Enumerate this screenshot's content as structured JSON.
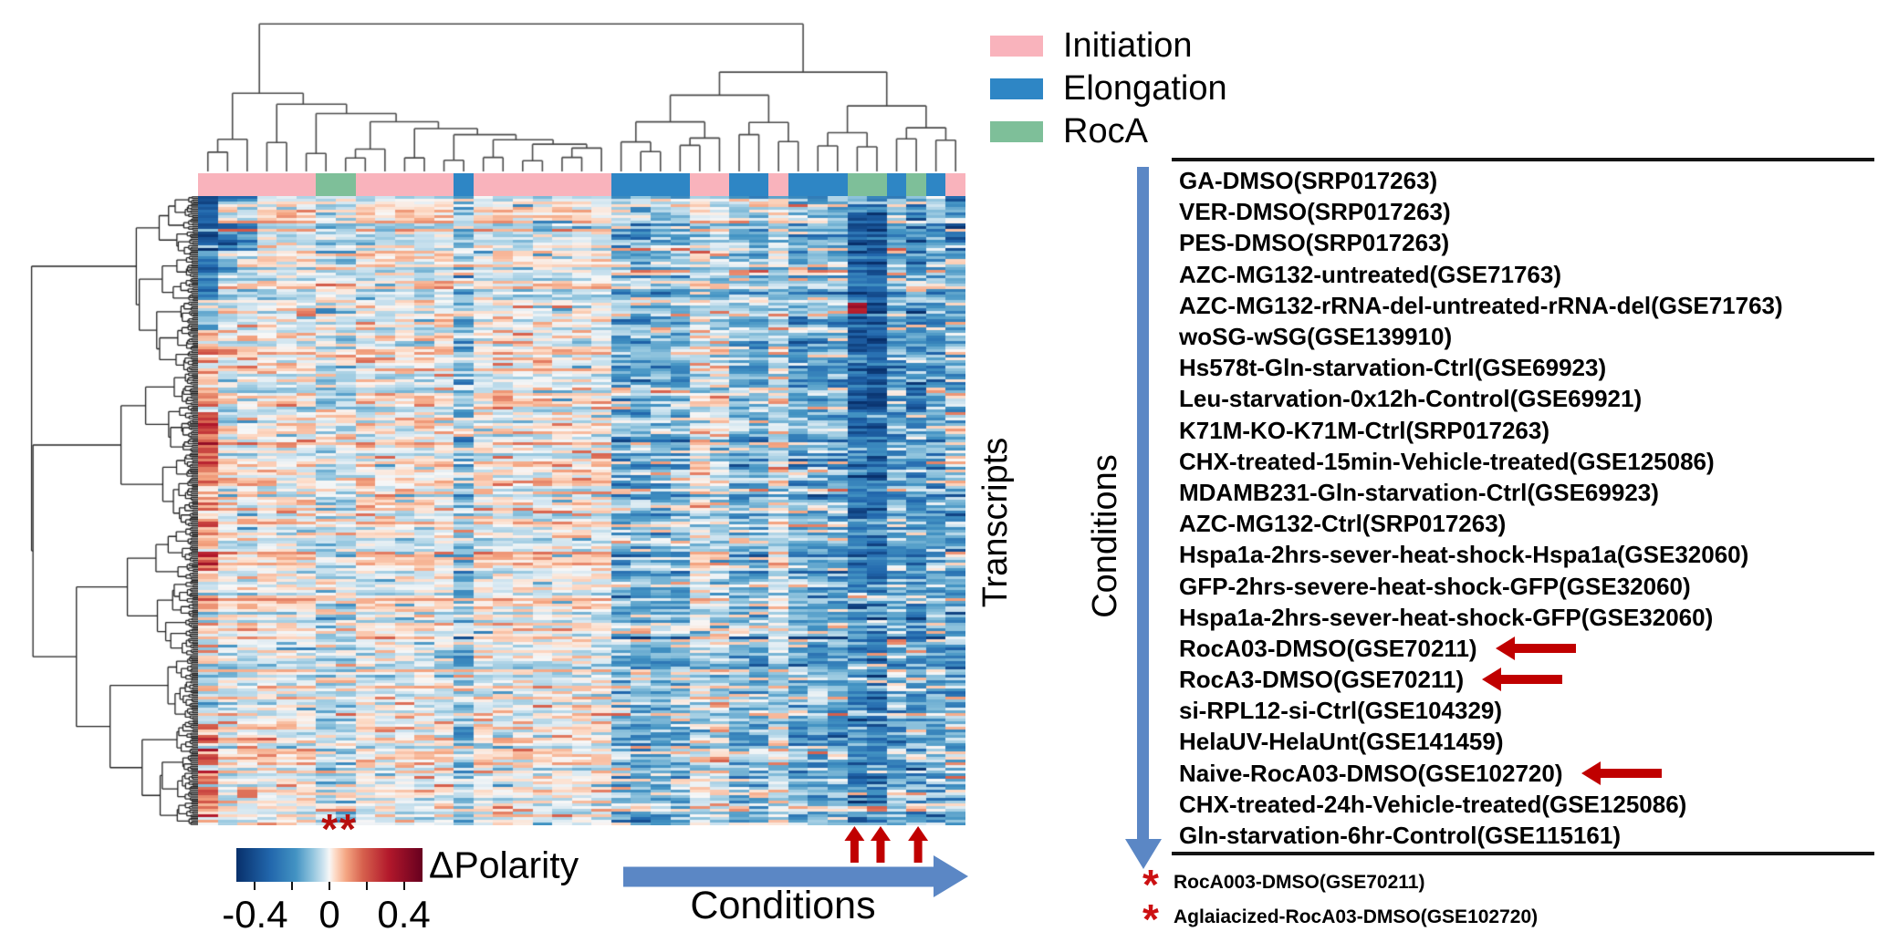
{
  "colors": {
    "initiation_pink": "#f9b3bc",
    "elongation_blue": "#2e86c5",
    "roca_green": "#7ebf99",
    "flow_arrow_blue": "#5b87c5",
    "highlight_red": "#c00000",
    "asterisk_red": "#cc1012",
    "rule_black": "#141414",
    "dendrogram_line": "#4a4a4a"
  },
  "legend": {
    "items": [
      {
        "code": "I",
        "label": "Initiation",
        "color": "#f9b3bc"
      },
      {
        "code": "E",
        "label": "Elongation",
        "color": "#2e86c5"
      },
      {
        "code": "R",
        "label": "RocA",
        "color": "#7ebf99"
      }
    ]
  },
  "axis_labels": {
    "transcripts": "Transcripts",
    "conditions_vertical": "Conditions",
    "conditions_horizontal": "Conditions"
  },
  "colorbar": {
    "label": "ΔPolarity",
    "significance_marker": "**",
    "range": [
      -0.5,
      0.5
    ],
    "tick_values": [
      -0.4,
      -0.2,
      0,
      0.2,
      0.4
    ],
    "tick_labels": [
      {
        "value": -0.4,
        "label": "-0.4"
      },
      {
        "value": 0,
        "label": "0"
      },
      {
        "value": 0.4,
        "label": "0.4"
      }
    ]
  },
  "conditions_panel": {
    "items": [
      {
        "label": "GA-DMSO(SRP017263)",
        "highlighted": false
      },
      {
        "label": "VER-DMSO(SRP017263)",
        "highlighted": false
      },
      {
        "label": "PES-DMSO(SRP017263)",
        "highlighted": false
      },
      {
        "label": "AZC-MG132-untreated(GSE71763)",
        "highlighted": false
      },
      {
        "label": "AZC-MG132-rRNA-del-untreated-rRNA-del(GSE71763)",
        "highlighted": false
      },
      {
        "label": "woSG-wSG(GSE139910)",
        "highlighted": false
      },
      {
        "label": "Hs578t-Gln-starvation-Ctrl(GSE69923)",
        "highlighted": false
      },
      {
        "label": "Leu-starvation-0x12h-Control(GSE69921)",
        "highlighted": false
      },
      {
        "label": "K71M-KO-K71M-Ctrl(SRP017263)",
        "highlighted": false
      },
      {
        "label": "CHX-treated-15min-Vehicle-treated(GSE125086)",
        "highlighted": false
      },
      {
        "label": "MDAMB231-Gln-starvation-Ctrl(GSE69923)",
        "highlighted": false
      },
      {
        "label": "AZC-MG132-Ctrl(SRP017263)",
        "highlighted": false
      },
      {
        "label": "Hspa1a-2hrs-sever-heat-shock-Hspa1a(GSE32060)",
        "highlighted": false
      },
      {
        "label": "GFP-2hrs-severe-heat-shock-GFP(GSE32060)",
        "highlighted": false
      },
      {
        "label": "Hspa1a-2hrs-sever-heat-shock-GFP(GSE32060)",
        "highlighted": false
      },
      {
        "label": "RocA03-DMSO(GSE70211)",
        "highlighted": true
      },
      {
        "label": "RocA3-DMSO(GSE70211)",
        "highlighted": true
      },
      {
        "label": "si-RPL12-si-Ctrl(GSE104329)",
        "highlighted": false
      },
      {
        "label": "HelaUV-HelaUnt(GSE141459)",
        "highlighted": false
      },
      {
        "label": "Naive-RocA03-DMSO(GSE102720)",
        "highlighted": true
      },
      {
        "label": "CHX-treated-24h-Vehicle-treated(GSE125086)",
        "highlighted": false
      },
      {
        "label": "Gln-starvation-6hr-Control(GSE115161)",
        "highlighted": false
      }
    ],
    "footnotes": [
      {
        "marker": "*",
        "label": "RocA003-DMSO(GSE70211)"
      },
      {
        "marker": "*",
        "label": "Aglaiacized-RocA03-DMSO(GSE102720)"
      }
    ]
  },
  "chart_data": {
    "type": "heatmap",
    "title": "",
    "x_axis": "Conditions",
    "y_axis": "Transcripts",
    "value_label": "ΔPolarity",
    "value_range": [
      -0.5,
      0.5
    ],
    "colorbar_labeled_ticks": [
      -0.4,
      0,
      0.4
    ],
    "legend_entries": [
      "Initiation",
      "Elongation",
      "RocA"
    ],
    "n_condition_columns": 39,
    "n_rows_rendered": 230,
    "row_dendrogram": true,
    "column_dendrogram": true,
    "conditions_listed": [
      "GA-DMSO(SRP017263)",
      "VER-DMSO(SRP017263)",
      "PES-DMSO(SRP017263)",
      "AZC-MG132-untreated(GSE71763)",
      "AZC-MG132-rRNA-del-untreated-rRNA-del(GSE71763)",
      "woSG-wSG(GSE139910)",
      "Hs578t-Gln-starvation-Ctrl(GSE69923)",
      "Leu-starvation-0x12h-Control(GSE69921)",
      "K71M-KO-K71M-Ctrl(SRP017263)",
      "CHX-treated-15min-Vehicle-treated(GSE125086)",
      "MDAMB231-Gln-starvation-Ctrl(GSE69923)",
      "AZC-MG132-Ctrl(SRP017263)",
      "Hspa1a-2hrs-sever-heat-shock-Hspa1a(GSE32060)",
      "GFP-2hrs-severe-heat-shock-GFP(GSE32060)",
      "Hspa1a-2hrs-sever-heat-shock-GFP(GSE32060)",
      "RocA03-DMSO(GSE70211)",
      "RocA3-DMSO(GSE70211)",
      "si-RPL12-si-Ctrl(GSE104329)",
      "HelaUV-HelaUnt(GSE141459)",
      "Naive-RocA03-DMSO(GSE102720)",
      "CHX-treated-24h-Vehicle-treated(GSE125086)",
      "Gln-starvation-6hr-Control(GSE115161)"
    ],
    "annotation_classes": {
      "I": {
        "label": "Initiation",
        "color": "#f9b3bc"
      },
      "E": {
        "label": "Elongation",
        "color": "#2e86c5"
      },
      "R": {
        "label": "RocA",
        "color": "#7ebf99"
      }
    },
    "column_annotation": [
      "I",
      "I",
      "I",
      "I",
      "I",
      "I",
      "R",
      "R",
      "I",
      "I",
      "I",
      "I",
      "I",
      "E",
      "I",
      "I",
      "I",
      "I",
      "I",
      "I",
      "I",
      "E",
      "E",
      "E",
      "E",
      "I",
      "I",
      "E",
      "E",
      "I",
      "E",
      "E",
      "E",
      "R",
      "R",
      "E",
      "R",
      "E",
      "I"
    ],
    "marked_column_indices": [
      33,
      34,
      36
    ],
    "colormap_stops": [
      [
        -0.5,
        "#08306b"
      ],
      [
        -0.32,
        "#2166ac"
      ],
      [
        -0.18,
        "#4393c3"
      ],
      [
        -0.09,
        "#92c5de"
      ],
      [
        -0.03,
        "#d1e5f0"
      ],
      [
        0.0,
        "#f7f7f7"
      ],
      [
        0.03,
        "#fddbc7"
      ],
      [
        0.09,
        "#f4a582"
      ],
      [
        0.18,
        "#d6604d"
      ],
      [
        0.32,
        "#b2182b"
      ],
      [
        0.5,
        "#67001f"
      ]
    ],
    "column_profiles": [
      {
        "mean": -0.05,
        "std": 0.1,
        "bands": [
          [
            0.0,
            0.04,
            -0.38,
            0.05
          ],
          [
            0.04,
            0.15,
            -0.26,
            0.1
          ],
          [
            0.15,
            0.21,
            -0.1,
            0.1
          ],
          [
            0.21,
            0.34,
            0.09,
            0.08
          ],
          [
            0.34,
            0.42,
            0.24,
            0.07
          ],
          [
            0.42,
            0.6,
            0.1,
            0.09
          ],
          [
            0.6,
            0.84,
            0.0,
            0.1
          ],
          [
            0.84,
            1.01,
            0.12,
            0.1
          ]
        ]
      },
      {
        "mean": -0.01,
        "std": 0.06,
        "bands": [
          [
            0.0,
            0.12,
            -0.14,
            0.12
          ]
        ]
      },
      {
        "mean": -0.01,
        "std": 0.06,
        "bands": [
          [
            0.0,
            0.1,
            -0.1,
            0.1
          ]
        ]
      },
      {
        "mean": -0.005,
        "std": 0.05
      },
      {
        "mean": -0.005,
        "std": 0.05
      },
      {
        "mean": -0.005,
        "std": 0.05
      },
      {
        "mean": -0.04,
        "std": 0.07
      },
      {
        "mean": -0.04,
        "std": 0.07
      },
      {
        "mean": -0.005,
        "std": 0.05
      },
      {
        "mean": -0.005,
        "std": 0.05
      },
      {
        "mean": -0.005,
        "std": 0.05
      },
      {
        "mean": -0.005,
        "std": 0.05
      },
      {
        "mean": -0.005,
        "std": 0.05
      },
      {
        "mean": -0.09,
        "std": 0.09
      },
      {
        "mean": -0.005,
        "std": 0.05
      },
      {
        "mean": -0.005,
        "std": 0.05
      },
      {
        "mean": -0.005,
        "std": 0.05
      },
      {
        "mean": -0.005,
        "std": 0.05
      },
      {
        "mean": -0.005,
        "std": 0.05
      },
      {
        "mean": -0.005,
        "std": 0.05
      },
      {
        "mean": -0.005,
        "std": 0.05
      },
      {
        "mean": -0.11,
        "std": 0.1
      },
      {
        "mean": -0.12,
        "std": 0.1
      },
      {
        "mean": -0.11,
        "std": 0.09
      },
      {
        "mean": -0.1,
        "std": 0.09
      },
      {
        "mean": -0.03,
        "std": 0.06
      },
      {
        "mean": -0.03,
        "std": 0.06
      },
      {
        "mean": -0.1,
        "std": 0.09
      },
      {
        "mean": -0.11,
        "std": 0.1
      },
      {
        "mean": -0.04,
        "std": 0.06
      },
      {
        "mean": -0.12,
        "std": 0.1
      },
      {
        "mean": -0.13,
        "std": 0.1
      },
      {
        "mean": -0.12,
        "std": 0.1
      },
      {
        "mean": -0.2,
        "std": 0.12,
        "bands": [
          [
            0.168,
            0.185,
            0.33,
            0.04
          ],
          [
            0.03,
            0.4,
            -0.33,
            0.09
          ],
          [
            0.4,
            0.62,
            -0.26,
            0.1
          ]
        ]
      },
      {
        "mean": -0.22,
        "std": 0.12,
        "bands": [
          [
            0.03,
            0.4,
            -0.35,
            0.08
          ],
          [
            0.4,
            0.62,
            -0.28,
            0.1
          ]
        ]
      },
      {
        "mean": -0.12,
        "std": 0.1
      },
      {
        "mean": -0.16,
        "std": 0.11,
        "bands": [
          [
            0.3,
            0.7,
            -0.2,
            0.1
          ]
        ]
      },
      {
        "mean": -0.13,
        "std": 0.1
      },
      {
        "mean": -0.09,
        "std": 0.1,
        "bands": [
          [
            0.0,
            0.1,
            -0.22,
            0.1
          ],
          [
            0.45,
            0.75,
            -0.16,
            0.1
          ]
        ]
      }
    ]
  }
}
